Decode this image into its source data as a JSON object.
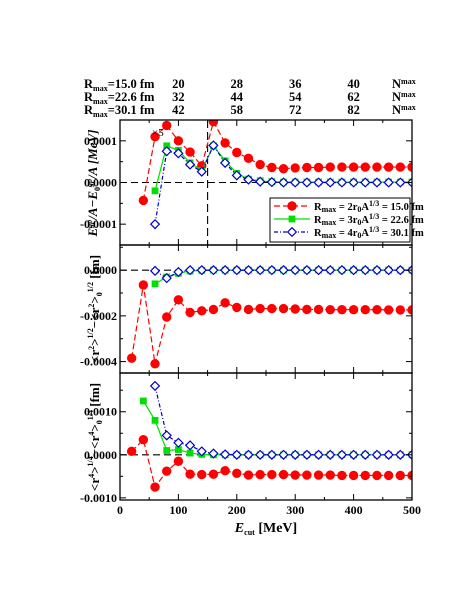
{
  "header": {
    "rows": [
      {
        "rmax_label": "R",
        "rmax_sub": "max",
        "rmax_value": "=15.0 fm",
        "nmax": [
          "20",
          "28",
          "36",
          "40"
        ],
        "end_label": "N",
        "end_sup": "max"
      },
      {
        "rmax_label": "R",
        "rmax_sub": "max",
        "rmax_value": "=22.6 fm",
        "nmax": [
          "32",
          "44",
          "54",
          "62"
        ],
        "end_label": "N",
        "end_sup": "max"
      },
      {
        "rmax_label": "R",
        "rmax_sub": "max",
        "rmax_value": "=30.1 fm",
        "nmax": [
          "42",
          "58",
          "72",
          "82"
        ],
        "end_label": "N",
        "end_sup": "max"
      }
    ],
    "nmax_at_ecut": [
      100,
      200,
      300,
      400
    ]
  },
  "colors": {
    "red": "#ff0000",
    "green": "#00e000",
    "blue": "#0000cc"
  },
  "chart_data": [
    {
      "type": "line",
      "panel": "top",
      "ylabel": "E^gp/A - E_0^gp/A [MeV]",
      "ylim": [
        -0.00015,
        0.00015
      ],
      "yticks": [
        -0.0001,
        0.0,
        0.0001
      ],
      "yticklabels": [
        "-0.0001",
        "0.0000",
        "0.0001"
      ],
      "xlim": [
        0,
        500
      ],
      "annotation": "×5",
      "vline_x": 150,
      "series": [
        {
          "color": "red",
          "marker": "circle",
          "x": [
            40,
            60,
            80,
            100,
            120,
            140,
            160,
            180,
            200,
            220,
            240,
            260,
            280,
            300,
            320,
            340,
            360,
            380,
            400,
            420,
            440,
            460,
            480,
            500
          ],
          "y": [
            -4.3e-05,
            0.00011,
            0.000137,
            0.0001,
            7.3e-05,
            4e-05,
            0.000146,
            9.5e-05,
            7.2e-05,
            5.8e-05,
            4.3e-05,
            3.6e-05,
            3.3e-05,
            3.5e-05,
            3.6e-05,
            3.6e-05,
            3.7e-05,
            3.7e-05,
            3.7e-05,
            3.7e-05,
            3.7e-05,
            3.7e-05,
            3.7e-05,
            3.7e-05
          ]
        },
        {
          "color": "green",
          "marker": "square",
          "x": [
            60,
            80,
            100,
            120,
            140,
            160,
            180,
            200,
            220,
            240,
            260,
            280,
            300,
            320,
            340,
            360,
            380,
            400,
            420,
            440,
            460,
            480,
            500
          ],
          "y": [
            -2e-05,
            8.8e-05,
            7.7e-05,
            4.7e-05,
            2.9e-05,
            8.8e-05,
            5.2e-05,
            2.2e-05,
            8e-06,
            4e-06,
            2e-06,
            1e-06,
            1e-06,
            1e-06,
            1e-06,
            1e-06,
            1e-06,
            1e-06,
            1e-06,
            1e-06,
            1e-06,
            1e-06,
            1e-06
          ]
        },
        {
          "color": "blue",
          "marker": "diamond",
          "x": [
            60,
            80,
            100,
            120,
            140,
            160,
            180,
            200,
            220,
            240,
            260,
            280,
            300,
            320,
            340,
            360,
            380,
            400,
            420,
            440,
            460,
            480,
            500
          ],
          "y": [
            -0.0001,
            7.5e-05,
            7e-05,
            4.3e-05,
            2.6e-05,
            8.9e-05,
            4.7e-05,
            1.7e-05,
            7e-06,
            2e-06,
            1e-06,
            0.0,
            0.0,
            0.0,
            0.0,
            0.0,
            0.0,
            0.0,
            0.0,
            0.0,
            0.0,
            0.0,
            0.0
          ]
        }
      ]
    },
    {
      "type": "line",
      "panel": "middle",
      "ylabel": "<r^2>^1/2 - <r^2>_0^1/2 [fm]",
      "ylim": [
        -0.00045,
        0.00011
      ],
      "yticks": [
        -0.0004,
        -0.0002,
        0.0
      ],
      "yticklabels": [
        "-0.0004",
        "-0.0002",
        "0.0000"
      ],
      "xlim": [
        0,
        500
      ],
      "series": [
        {
          "color": "red",
          "marker": "circle",
          "x": [
            20,
            40,
            60,
            80,
            100,
            120,
            140,
            160,
            180,
            200,
            220,
            240,
            260,
            280,
            300,
            320,
            340,
            360,
            380,
            400,
            420,
            440,
            460,
            480,
            500
          ],
          "y": [
            -0.000385,
            -6.5e-05,
            -0.00041,
            -0.000205,
            -0.00013,
            -0.000185,
            -0.000178,
            -0.000172,
            -0.000143,
            -0.000163,
            -0.000172,
            -0.000168,
            -0.000168,
            -0.000168,
            -0.00017,
            -0.000172,
            -0.000172,
            -0.000173,
            -0.000173,
            -0.000173,
            -0.000173,
            -0.000173,
            -0.000174,
            -0.000174,
            -0.000174
          ]
        },
        {
          "color": "green",
          "marker": "square",
          "x": [
            60,
            80,
            100,
            120,
            140,
            160,
            180,
            200,
            220,
            240,
            260,
            280,
            300,
            320,
            340,
            360,
            380,
            400,
            420,
            440,
            460,
            480,
            500
          ],
          "y": [
            -6e-05,
            -3e-05,
            -1.4e-05,
            -4e-06,
            -1e-06,
            0.0,
            0.0,
            0.0,
            0.0,
            0.0,
            0.0,
            0.0,
            0.0,
            0.0,
            0.0,
            0.0,
            0.0,
            0.0,
            0.0,
            0.0,
            0.0,
            0.0,
            0.0
          ]
        },
        {
          "color": "blue",
          "marker": "diamond",
          "x": [
            60,
            80,
            100,
            120,
            140,
            160,
            180,
            200,
            220,
            240,
            260,
            280,
            300,
            320,
            340,
            360,
            380,
            400,
            420,
            440,
            460,
            480,
            500
          ],
          "y": [
            -3e-06,
            -3.5e-05,
            -8e-06,
            0.0,
            0.0,
            0.0,
            0.0,
            0.0,
            0.0,
            0.0,
            0.0,
            0.0,
            0.0,
            0.0,
            0.0,
            0.0,
            0.0,
            0.0,
            0.0,
            0.0,
            0.0,
            0.0,
            0.0
          ]
        }
      ]
    },
    {
      "type": "line",
      "panel": "bottom",
      "ylabel": "<r^4>^1/4 - <r^4>_0^1/4 [fm]",
      "ylim": [
        -0.00105,
        0.0019
      ],
      "yticks": [
        -0.001,
        0.0,
        0.001
      ],
      "yticklabels": [
        "-0.0010",
        "0.0000",
        "0.0010"
      ],
      "xlabel": "E_cut [MeV]",
      "xticks": [
        0,
        100,
        200,
        300,
        400,
        500
      ],
      "xticklabels": [
        "0",
        "100",
        "200",
        "300",
        "400",
        "500"
      ],
      "xlim": [
        0,
        500
      ],
      "series": [
        {
          "color": "red",
          "marker": "circle",
          "x": [
            20,
            40,
            60,
            80,
            100,
            120,
            140,
            160,
            180,
            200,
            220,
            240,
            260,
            280,
            300,
            320,
            340,
            360,
            380,
            400,
            420,
            440,
            460,
            480,
            500
          ],
          "y": [
            8e-05,
            0.00035,
            -0.00075,
            -0.00038,
            -0.00015,
            -0.00045,
            -0.00046,
            -0.00045,
            -0.00037,
            -0.00043,
            -0.00047,
            -0.00046,
            -0.00046,
            -0.00046,
            -0.00047,
            -0.00047,
            -0.00047,
            -0.00047,
            -0.00048,
            -0.00048,
            -0.00048,
            -0.00048,
            -0.00048,
            -0.00048,
            -0.00048
          ]
        },
        {
          "color": "green",
          "marker": "square",
          "x": [
            40,
            60,
            80,
            100,
            120,
            140,
            160,
            180,
            200,
            220,
            240,
            260,
            280,
            300,
            320,
            340,
            360,
            380,
            400,
            420,
            440,
            460,
            480,
            500
          ],
          "y": [
            0.00125,
            0.0008,
            0.0001,
            0.00012,
            4e-05,
            1e-05,
            0.0,
            0.0,
            0.0,
            0.0,
            0.0,
            0.0,
            0.0,
            0.0,
            0.0,
            0.0,
            0.0,
            0.0,
            0.0,
            0.0,
            0.0,
            0.0,
            0.0,
            0.0
          ]
        },
        {
          "color": "blue",
          "marker": "diamond",
          "x": [
            60,
            80,
            100,
            120,
            140,
            160,
            180,
            200,
            220,
            240,
            260,
            280,
            300,
            320,
            340,
            360,
            380,
            400,
            420,
            440,
            460,
            480,
            500
          ],
          "y": [
            0.0016,
            0.00045,
            0.00028,
            0.00022,
            8e-05,
            3e-05,
            1e-05,
            0.0,
            0.0,
            0.0,
            0.0,
            0.0,
            0.0,
            0.0,
            0.0,
            0.0,
            0.0,
            0.0,
            0.0,
            0.0,
            0.0,
            0.0,
            0.0
          ]
        }
      ]
    }
  ],
  "legend": {
    "placement": "bottom-right of top panel",
    "entries": [
      {
        "color": "red",
        "marker": "circle",
        "label_R": "R",
        "label_sub": "max",
        "label_mid": " = 2r",
        "label_sub2": "0",
        "label_A": "A",
        "label_sup": "1/3",
        "label_end": " = 15.0 fm"
      },
      {
        "color": "green",
        "marker": "square",
        "label_R": "R",
        "label_sub": "max",
        "label_mid": " = 3r",
        "label_sub2": "0",
        "label_A": "A",
        "label_sup": "1/3",
        "label_end": " = 22.6 fm"
      },
      {
        "color": "blue",
        "marker": "diamond",
        "label_R": "R",
        "label_sub": "max",
        "label_mid": " = 4r",
        "label_sub2": "0",
        "label_A": "A",
        "label_sup": "1/3",
        "label_end": " = 30.1 fm"
      }
    ]
  }
}
